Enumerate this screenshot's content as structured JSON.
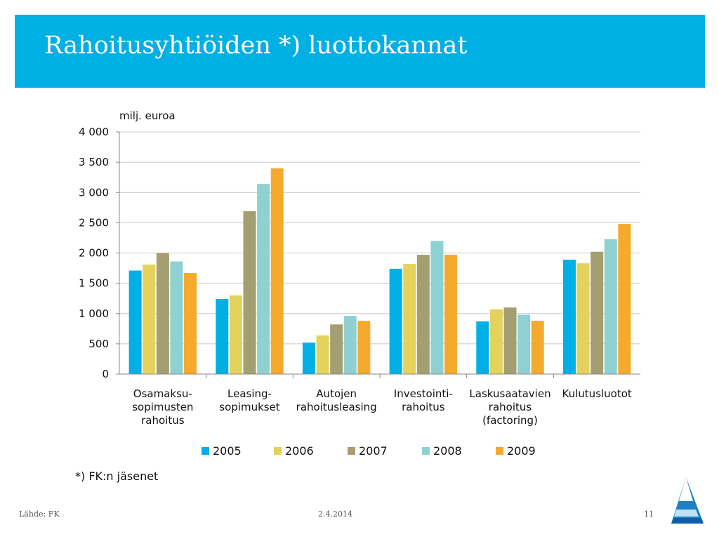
{
  "slide": {
    "title": "Rahoitusyhtiöiden *) luottokannat",
    "footnote": "*) FK:n jäsenet",
    "footer_source": "Lähde: FK",
    "footer_date": "2.4.2014",
    "page_number": "11",
    "accent_color": "#00b0e4"
  },
  "chart_data": {
    "type": "bar",
    "ylabel": "milj. euroa",
    "ylim": [
      0,
      4000
    ],
    "yticks": [
      0,
      500,
      1000,
      1500,
      2000,
      2500,
      3000,
      3500,
      4000
    ],
    "ytick_labels": [
      "0",
      "500",
      "1 000",
      "1 500",
      "2 000",
      "2 500",
      "3 000",
      "3 500",
      "4 000"
    ],
    "grid": true,
    "legend_position": "bottom",
    "categories": [
      [
        "Osamaksu-",
        "sopimusten",
        "rahoitus"
      ],
      [
        "Leasing-",
        "sopimukset"
      ],
      [
        "Autojen",
        "rahoitusleasing"
      ],
      [
        "Investointi-",
        "rahoitus"
      ],
      [
        "Laskusaatavien",
        "rahoitus",
        "(factoring)"
      ],
      [
        "Kulutusluotot"
      ]
    ],
    "series": [
      {
        "name": "2005",
        "color": "#00b0e4",
        "values": [
          1710,
          1240,
          520,
          1740,
          870,
          1890
        ]
      },
      {
        "name": "2006",
        "color": "#e5d25c",
        "values": [
          1810,
          1300,
          640,
          1820,
          1070,
          1830
        ]
      },
      {
        "name": "2007",
        "color": "#a39f70",
        "values": [
          2000,
          2690,
          820,
          1970,
          1100,
          2020
        ]
      },
      {
        "name": "2008",
        "color": "#8fd1d3",
        "values": [
          1860,
          3140,
          960,
          2200,
          980,
          2230
        ]
      },
      {
        "name": "2009",
        "color": "#f5aa2e",
        "values": [
          1670,
          3400,
          880,
          1970,
          880,
          2480
        ]
      }
    ]
  }
}
